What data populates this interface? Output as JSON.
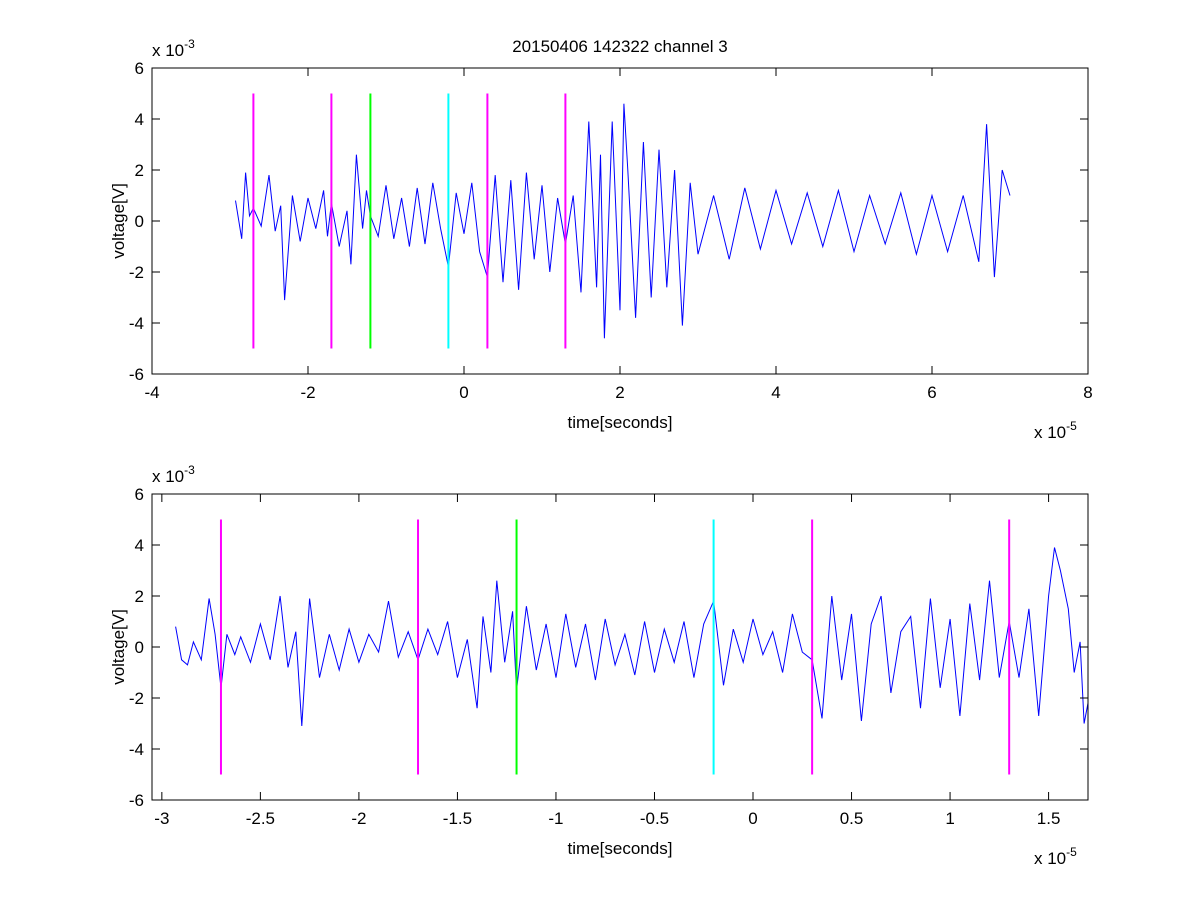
{
  "figure": {
    "title": "20150406 142322 channel 3"
  },
  "chart_data": [
    {
      "type": "line",
      "xlabel": "time[seconds]",
      "ylabel": "voltage[V]",
      "x_exponent_label": "x 10",
      "x_exponent": "-5",
      "y_exponent_label": "x 10",
      "y_exponent": "-3",
      "xlim": [
        -4,
        8
      ],
      "ylim": [
        -6,
        6
      ],
      "xticks": [
        -4,
        -2,
        0,
        2,
        4,
        6,
        8
      ],
      "yticks": [
        -6,
        -4,
        -2,
        0,
        2,
        4,
        6
      ],
      "xtick_labels": [
        "-4",
        "-2",
        "0",
        "2",
        "4",
        "6",
        "8"
      ],
      "ytick_labels": [
        "-6",
        "-4",
        "-2",
        "0",
        "2",
        "4",
        "6"
      ],
      "grid": false,
      "series": [
        {
          "color": "#0000ff",
          "x": [
            -2.93,
            -2.85,
            -2.8,
            -2.75,
            -2.7,
            -2.6,
            -2.5,
            -2.42,
            -2.35,
            -2.3,
            -2.2,
            -2.1,
            -2.0,
            -1.9,
            -1.8,
            -1.75,
            -1.7,
            -1.6,
            -1.5,
            -1.45,
            -1.38,
            -1.3,
            -1.25,
            -1.2,
            -1.1,
            -1.0,
            -0.9,
            -0.8,
            -0.7,
            -0.6,
            -0.5,
            -0.4,
            -0.3,
            -0.2,
            -0.1,
            0.0,
            0.1,
            0.2,
            0.3,
            0.4,
            0.5,
            0.6,
            0.7,
            0.8,
            0.9,
            1.0,
            1.1,
            1.2,
            1.3,
            1.4,
            1.5,
            1.6,
            1.7,
            1.75,
            1.8,
            1.9,
            2.0,
            2.05,
            2.1,
            2.2,
            2.3,
            2.4,
            2.5,
            2.6,
            2.7,
            2.8,
            2.9,
            3.0,
            3.2,
            3.4,
            3.6,
            3.8,
            4.0,
            4.2,
            4.4,
            4.6,
            4.8,
            5.0,
            5.2,
            5.4,
            5.6,
            5.8,
            6.0,
            6.2,
            6.4,
            6.6,
            6.7,
            6.8,
            6.9,
            7.0
          ],
          "values": [
            0.8,
            -0.7,
            1.9,
            0.2,
            0.5,
            -0.2,
            1.8,
            -0.4,
            0.6,
            -3.1,
            1.0,
            -0.8,
            0.9,
            -0.3,
            1.2,
            -0.6,
            0.7,
            -1.0,
            0.4,
            -1.7,
            2.6,
            -0.3,
            1.2,
            0.2,
            -0.6,
            1.4,
            -0.7,
            0.9,
            -1.0,
            1.3,
            -0.9,
            1.5,
            -0.3,
            -1.8,
            1.1,
            -0.5,
            1.5,
            -1.2,
            -2.2,
            1.8,
            -2.4,
            1.6,
            -2.7,
            1.9,
            -1.5,
            1.4,
            -2.0,
            0.9,
            -0.9,
            1.0,
            -2.8,
            3.9,
            -2.6,
            2.6,
            -4.6,
            3.9,
            -3.5,
            4.6,
            2.0,
            -3.8,
            3.1,
            -3.0,
            2.8,
            -2.6,
            2.0,
            -4.1,
            1.5,
            -1.3,
            1.0,
            -1.5,
            1.3,
            -1.1,
            1.2,
            -0.9,
            1.1,
            -1.0,
            1.2,
            -1.2,
            1.0,
            -0.9,
            1.1,
            -1.3,
            1.0,
            -1.2,
            1.0,
            -1.6,
            3.8,
            -2.2,
            2.0,
            1.0
          ]
        }
      ],
      "markers": [
        {
          "x": -2.7,
          "ymin": -5,
          "ymax": 5,
          "color": "#ff00ff"
        },
        {
          "x": -1.7,
          "ymin": -5,
          "ymax": 5,
          "color": "#ff00ff"
        },
        {
          "x": -1.2,
          "ymin": -5,
          "ymax": 5,
          "color": "#00ff00"
        },
        {
          "x": -0.2,
          "ymin": -5,
          "ymax": 5,
          "color": "#00ffff"
        },
        {
          "x": 0.3,
          "ymin": -5,
          "ymax": 5,
          "color": "#ff00ff"
        },
        {
          "x": 1.3,
          "ymin": -5,
          "ymax": 5,
          "color": "#ff00ff"
        }
      ]
    },
    {
      "type": "line",
      "xlabel": "time[seconds]",
      "ylabel": "voltage[V]",
      "x_exponent_label": "x 10",
      "x_exponent": "-5",
      "y_exponent_label": "x 10",
      "y_exponent": "-3",
      "xlim": [
        -3.05,
        1.7
      ],
      "ylim": [
        -6,
        6
      ],
      "xticks": [
        -3,
        -2.5,
        -2,
        -1.5,
        -1,
        -0.5,
        0,
        0.5,
        1,
        1.5
      ],
      "yticks": [
        -6,
        -4,
        -2,
        0,
        2,
        4,
        6
      ],
      "xtick_labels": [
        "-3",
        "-2.5",
        "-2",
        "-1.5",
        "-1",
        "-0.5",
        "0",
        "0.5",
        "1",
        "1.5"
      ],
      "ytick_labels": [
        "-6",
        "-4",
        "-2",
        "0",
        "2",
        "4",
        "6"
      ],
      "grid": false,
      "series": [
        {
          "color": "#0000ff",
          "x": [
            -2.93,
            -2.9,
            -2.87,
            -2.84,
            -2.8,
            -2.76,
            -2.73,
            -2.7,
            -2.67,
            -2.63,
            -2.6,
            -2.55,
            -2.5,
            -2.45,
            -2.4,
            -2.36,
            -2.32,
            -2.29,
            -2.25,
            -2.2,
            -2.15,
            -2.1,
            -2.05,
            -2.0,
            -1.95,
            -1.9,
            -1.85,
            -1.8,
            -1.75,
            -1.7,
            -1.65,
            -1.6,
            -1.55,
            -1.5,
            -1.45,
            -1.4,
            -1.37,
            -1.33,
            -1.3,
            -1.26,
            -1.22,
            -1.2,
            -1.15,
            -1.1,
            -1.05,
            -1.0,
            -0.95,
            -0.9,
            -0.85,
            -0.8,
            -0.75,
            -0.7,
            -0.65,
            -0.6,
            -0.55,
            -0.5,
            -0.45,
            -0.4,
            -0.35,
            -0.3,
            -0.25,
            -0.2,
            -0.15,
            -0.1,
            -0.05,
            0.0,
            0.05,
            0.1,
            0.15,
            0.2,
            0.25,
            0.3,
            0.35,
            0.4,
            0.45,
            0.5,
            0.55,
            0.6,
            0.65,
            0.7,
            0.75,
            0.8,
            0.85,
            0.9,
            0.95,
            1.0,
            1.05,
            1.1,
            1.15,
            1.2,
            1.25,
            1.3,
            1.35,
            1.4,
            1.45,
            1.5,
            1.53,
            1.56,
            1.6,
            1.63,
            1.66,
            1.68,
            1.7
          ],
          "values": [
            0.8,
            -0.5,
            -0.7,
            0.2,
            -0.5,
            1.9,
            0.5,
            -1.6,
            0.5,
            -0.3,
            0.4,
            -0.6,
            0.9,
            -0.5,
            2.0,
            -0.8,
            0.6,
            -3.1,
            1.9,
            -1.2,
            0.5,
            -0.9,
            0.7,
            -0.6,
            0.5,
            -0.2,
            1.8,
            -0.4,
            0.6,
            -0.5,
            0.7,
            -0.3,
            1.0,
            -1.2,
            0.3,
            -2.4,
            1.2,
            -1.0,
            2.6,
            -0.6,
            1.4,
            -1.7,
            1.6,
            -0.9,
            0.9,
            -1.2,
            1.3,
            -0.8,
            0.9,
            -1.3,
            1.1,
            -0.7,
            0.5,
            -1.1,
            1.0,
            -1.0,
            0.7,
            -0.6,
            1.0,
            -1.2,
            0.9,
            1.8,
            -1.5,
            0.7,
            -0.6,
            1.1,
            -0.3,
            0.6,
            -1.0,
            1.3,
            -0.2,
            -0.5,
            -2.8,
            2.0,
            -1.3,
            1.3,
            -2.9,
            0.9,
            2.0,
            -1.8,
            0.6,
            1.2,
            -2.4,
            1.9,
            -1.6,
            1.1,
            -2.7,
            1.7,
            -1.3,
            2.6,
            -1.2,
            1.0,
            -1.2,
            1.5,
            -2.7,
            2.0,
            3.9,
            3.0,
            1.5,
            -1.0,
            0.2,
            -3.0,
            -2.2
          ]
        }
      ],
      "markers": [
        {
          "x": -2.7,
          "ymin": -5,
          "ymax": 5,
          "color": "#ff00ff"
        },
        {
          "x": -1.7,
          "ymin": -5,
          "ymax": 5,
          "color": "#ff00ff"
        },
        {
          "x": -1.2,
          "ymin": -5,
          "ymax": 5,
          "color": "#00ff00"
        },
        {
          "x": -0.2,
          "ymin": -5,
          "ymax": 5,
          "color": "#00ffff"
        },
        {
          "x": 0.3,
          "ymin": -5,
          "ymax": 5,
          "color": "#ff00ff"
        },
        {
          "x": 1.3,
          "ymin": -5,
          "ymax": 5,
          "color": "#ff00ff"
        }
      ]
    }
  ]
}
